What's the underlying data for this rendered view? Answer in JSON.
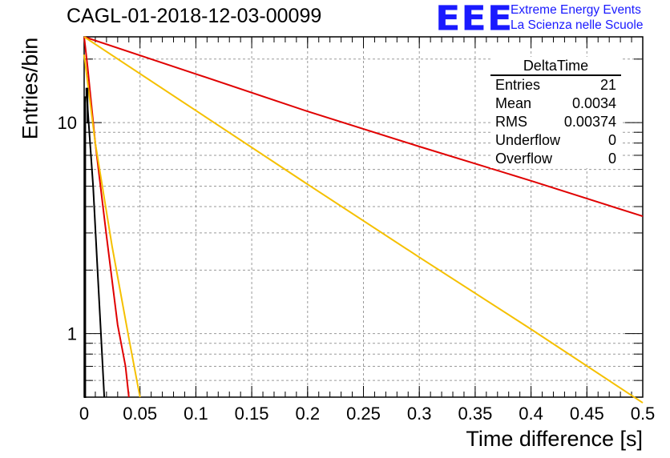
{
  "header": {
    "title": "CAGL-01-2018-12-03-00099",
    "logo_text": "EEE",
    "logo_line1": "Extreme Energy Events",
    "logo_line2": "La Scienza nelle Scuole",
    "logo_color": "#1a1aff"
  },
  "stats": {
    "title": "DeltaTime",
    "rows": [
      {
        "label": "Entries",
        "value": "21"
      },
      {
        "label": "Mean",
        "value": "0.0034"
      },
      {
        "label": "RMS",
        "value": "0.00374"
      },
      {
        "label": "Underflow",
        "value": "0"
      },
      {
        "label": "Overflow",
        "value": "0"
      }
    ]
  },
  "chart_data": {
    "type": "line",
    "title": "CAGL-01-2018-12-03-00099",
    "xlabel": "Time difference [s]",
    "ylabel": "Entries/bin",
    "xlim": [
      0,
      0.5
    ],
    "ylim": [
      0.5,
      25.5
    ],
    "yscale": "log",
    "grid": true,
    "xticks": [
      "0",
      "0.05",
      "0.1",
      "0.15",
      "0.2",
      "0.25",
      "0.3",
      "0.35",
      "0.4",
      "0.45",
      "0.5"
    ],
    "yticks": [
      "1",
      "10"
    ],
    "histogram": {
      "color": "#000000",
      "x": [
        0.0,
        0.001,
        0.001,
        0.002,
        0.002,
        0.003,
        0.003,
        0.004
      ],
      "y": [
        0.5,
        0.5,
        13.2,
        13.2,
        14.5,
        14.5,
        10.0,
        10.0
      ]
    },
    "series": [
      {
        "color": "#000000",
        "x": [
          0.002,
          0.004,
          0.008,
          0.012,
          0.016,
          0.018
        ],
        "y": [
          14.5,
          10.0,
          5.0,
          2.0,
          0.8,
          0.5
        ]
      },
      {
        "color": "#e00000",
        "x": [
          0.0,
          0.003,
          0.01,
          0.02,
          0.03,
          0.037,
          0.04
        ],
        "y": [
          25.5,
          18.5,
          8.0,
          2.9,
          1.1,
          0.7,
          0.5
        ]
      },
      {
        "color": "#f5c000",
        "x": [
          0.0,
          0.01,
          0.025,
          0.04,
          0.05
        ],
        "y": [
          21.0,
          8.0,
          2.6,
          0.95,
          0.5
        ]
      },
      {
        "color": "#e00000",
        "x": [
          0.0,
          0.1,
          0.2,
          0.3,
          0.4,
          0.5
        ],
        "y": [
          25.5,
          17.0,
          11.3,
          7.7,
          5.3,
          3.6
        ]
      },
      {
        "color": "#f5c000",
        "x": [
          0.0,
          0.1,
          0.2,
          0.3,
          0.4,
          0.5
        ],
        "y": [
          25.5,
          11.4,
          5.1,
          2.3,
          1.05,
          0.47
        ]
      }
    ]
  }
}
